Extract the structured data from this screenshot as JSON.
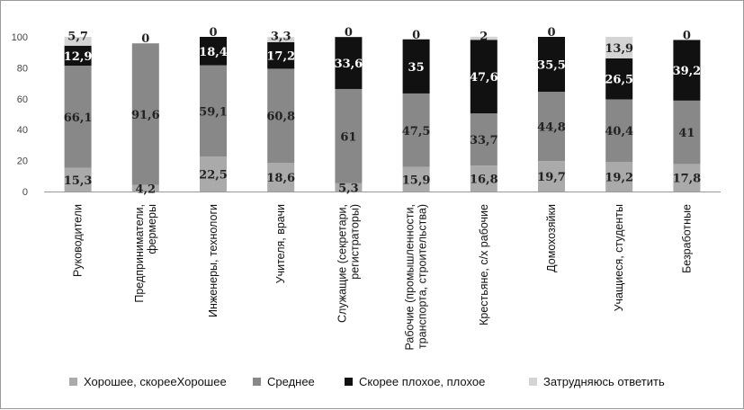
{
  "chart_data": {
    "type": "bar",
    "stacked": true,
    "categories": [
      [
        "Руководители"
      ],
      [
        "Предприниматели,",
        "фермеры"
      ],
      [
        "Инженеры, технологи"
      ],
      [
        "Учителя, врачи"
      ],
      [
        "Служащие (секретари,",
        "регистраторы)"
      ],
      [
        "Рабочие (промышленности,",
        "транспорта, строительства)"
      ],
      [
        "Крестьяне, с/х рабочие"
      ],
      [
        "Домохозяйки"
      ],
      [
        "Учащиеся, студенты"
      ],
      [
        "Безработные"
      ]
    ],
    "series": [
      {
        "name": "Хорошее, скорееХорошее",
        "color": "#aaaaaa",
        "label_color": "#222222",
        "values": [
          15.3,
          4.2,
          22.5,
          18.6,
          5.3,
          15.9,
          16.8,
          19.7,
          19.2,
          17.8
        ],
        "labels": [
          "15,3",
          "4,2",
          "22,5",
          "18,6",
          "5,3",
          "15,9",
          "16,8",
          "19,7",
          "19,2",
          "17,8"
        ]
      },
      {
        "name": "Среднее",
        "color": "#888888",
        "label_color": "#222222",
        "values": [
          66.1,
          91.6,
          59.1,
          60.8,
          61,
          47.5,
          33.7,
          44.8,
          40.4,
          41
        ],
        "labels": [
          "66,1",
          "91,6",
          "59,1",
          "60,8",
          "61",
          "47,5",
          "33,7",
          "44,8",
          "40,4",
          "41"
        ]
      },
      {
        "name": "Скорее плохое, плохое",
        "color": "#111111",
        "label_color": "#ffffff",
        "values": [
          12.9,
          0,
          18.4,
          17.2,
          33.6,
          35,
          47.6,
          35.5,
          26.5,
          39.2
        ],
        "labels": [
          "12,9",
          "0",
          "18,4",
          "17,2",
          "33,6",
          "35",
          "47,6",
          "35,5",
          "26,5",
          "39,2"
        ]
      },
      {
        "name": "Затрудняюсь ответить",
        "color": "#d4d4d4",
        "label_color": "#222222",
        "values": [
          5.7,
          0,
          0,
          3.3,
          0,
          0,
          2,
          0,
          13.9,
          0
        ],
        "labels": [
          "5,7",
          "",
          "0",
          "3,3",
          "0",
          "0",
          "2",
          "0",
          "13,9",
          "0"
        ]
      }
    ],
    "y_ticks": [
      "0",
      "20",
      "40",
      "60",
      "80",
      "100"
    ],
    "ylim": [
      0,
      100
    ],
    "grid": false,
    "legend_position": "bottom",
    "title": "",
    "xlabel": "",
    "ylabel": ""
  }
}
